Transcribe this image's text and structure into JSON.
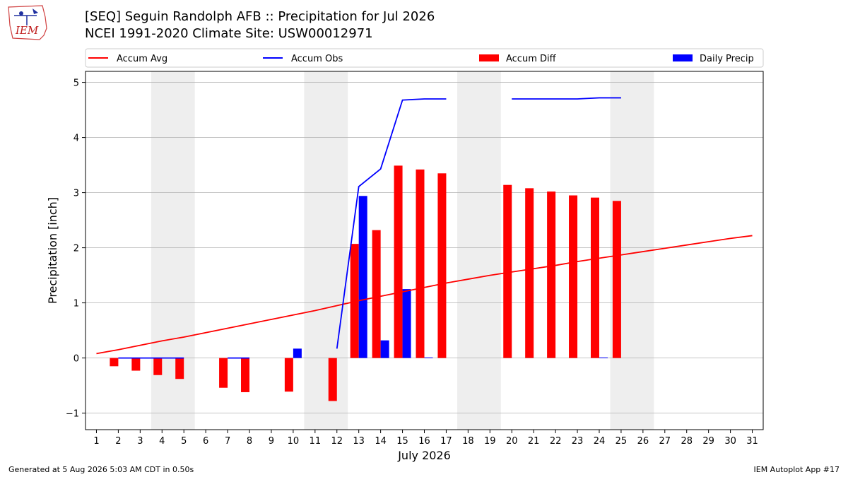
{
  "header": {
    "logo_text": "IEM",
    "title": "[SEQ] Seguin Randolph AFB :: Precipitation for Jul 2026",
    "subtitle": "NCEI 1991-2020 Climate Site: USW00012971"
  },
  "footer": {
    "generated": "Generated at 5 Aug 2026 5:03 AM CDT in 0.50s",
    "app": "IEM Autoplot App #17"
  },
  "chart_data": {
    "type": "bar",
    "xlabel": "July 2026",
    "ylabel": "Precipitation [inch]",
    "xlim": [
      0.5,
      31.5
    ],
    "ylim": [
      -1.3,
      5.2
    ],
    "x_ticks": [
      1,
      2,
      3,
      4,
      5,
      6,
      7,
      8,
      9,
      10,
      11,
      12,
      13,
      14,
      15,
      16,
      17,
      18,
      19,
      20,
      21,
      22,
      23,
      24,
      25,
      26,
      27,
      28,
      29,
      30,
      31
    ],
    "y_ticks": [
      -1,
      0,
      1,
      2,
      3,
      4,
      5
    ],
    "y_tick_labels": [
      "−1",
      "0",
      "1",
      "2",
      "3",
      "4",
      "5"
    ],
    "grid": "horizontal",
    "legend_placement": "top",
    "weekend_shading": [
      [
        3.5,
        5.5
      ],
      [
        10.5,
        12.5
      ],
      [
        17.5,
        19.5
      ],
      [
        24.5,
        26.5
      ]
    ],
    "colors": {
      "accum_avg": "#ff0000",
      "accum_obs": "#0000ff",
      "accum_diff": "#ff0000",
      "daily_precip": "#0000ff",
      "shade": "#eeeeee",
      "grid": "#b0b0b0"
    },
    "legend": [
      {
        "label": "Accum Avg",
        "kind": "line",
        "color": "#ff0000"
      },
      {
        "label": "Accum Obs",
        "kind": "line",
        "color": "#0000ff"
      },
      {
        "label": "Accum Diff",
        "kind": "patch",
        "color": "#ff0000"
      },
      {
        "label": "Daily Precip",
        "kind": "patch",
        "color": "#0000ff"
      }
    ],
    "series": [
      {
        "name": "Accum Avg",
        "kind": "line",
        "x": [
          1,
          2,
          3,
          4,
          5,
          6,
          7,
          8,
          9,
          10,
          11,
          12,
          13,
          14,
          15,
          16,
          17,
          18,
          19,
          20,
          21,
          22,
          23,
          24,
          25,
          26,
          27,
          28,
          29,
          30,
          31
        ],
        "values": [
          0.08,
          0.15,
          0.23,
          0.31,
          0.38,
          0.46,
          0.54,
          0.62,
          0.7,
          0.78,
          0.86,
          0.95,
          1.04,
          1.12,
          1.2,
          1.28,
          1.36,
          1.43,
          1.5,
          1.56,
          1.62,
          1.68,
          1.75,
          1.81,
          1.87,
          1.93,
          1.99,
          2.05,
          2.11,
          2.17,
          2.22
        ]
      },
      {
        "name": "Accum Obs",
        "kind": "line",
        "segments": [
          {
            "x": [
              2,
              3,
              4,
              5
            ],
            "values": [
              0.0,
              0.0,
              0.0,
              0.0
            ]
          },
          {
            "x": [
              7,
              8
            ],
            "values": [
              0.0,
              0.0
            ]
          },
          {
            "x": [
              12,
              13,
              14,
              15,
              16,
              17
            ],
            "values": [
              0.17,
              3.11,
              3.43,
              4.68,
              4.7,
              4.7
            ]
          },
          {
            "x": [
              20,
              21,
              22,
              23,
              24,
              25
            ],
            "values": [
              4.7,
              4.7,
              4.7,
              4.7,
              4.72,
              4.72
            ]
          }
        ]
      },
      {
        "name": "Accum Diff",
        "kind": "bar",
        "x": [
          2,
          3,
          4,
          5,
          7,
          8,
          10,
          12,
          13,
          14,
          15,
          16,
          17,
          20,
          21,
          22,
          23,
          24,
          25
        ],
        "values": [
          -0.15,
          -0.23,
          -0.31,
          -0.38,
          -0.54,
          -0.62,
          -0.61,
          -0.78,
          2.07,
          2.32,
          3.49,
          3.42,
          3.35,
          3.14,
          3.08,
          3.02,
          2.95,
          2.91,
          2.85
        ]
      },
      {
        "name": "Daily Precip",
        "kind": "bar",
        "x": [
          10,
          13,
          14,
          15,
          16,
          24
        ],
        "values": [
          0.17,
          2.94,
          0.32,
          1.25,
          0.01,
          0.01
        ]
      }
    ]
  }
}
